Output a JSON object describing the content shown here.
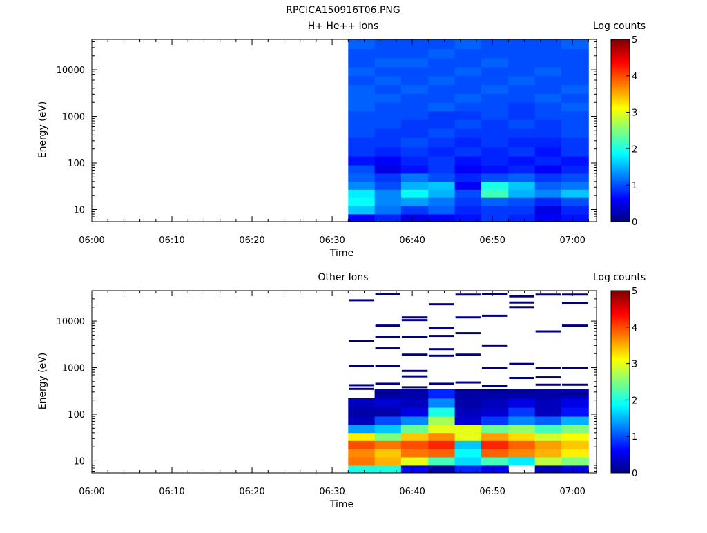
{
  "page_title": "RPCICA150916T06.PNG",
  "chart_data": [
    {
      "type": "heatmap",
      "title": "H+ He++ Ions",
      "xlabel": "Time",
      "ylabel": "Energy (eV)",
      "colorbar_label": "Log counts",
      "x_ticks": [
        "06:00",
        "06:10",
        "06:20",
        "06:30",
        "06:40",
        "06:50",
        "07:00"
      ],
      "x_range_minutes": [
        0,
        63
      ],
      "y_ticks": [
        "10",
        "100",
        "1000",
        "10000"
      ],
      "y_scale": "log",
      "y_range_eV": [
        5.5,
        45000
      ],
      "colorbar_ticks": [
        "0",
        "1",
        "2",
        "3",
        "4",
        "5"
      ],
      "colorbar_range": [
        0,
        5
      ],
      "colormap": [
        "#00007f",
        "#0000ff",
        "#007fff",
        "#00ffff",
        "#7fff7f",
        "#ffff00",
        "#ff7f00",
        "#ff0000",
        "#7f0000"
      ],
      "time_columns_minutes": [
        32.0,
        35.3,
        38.6,
        42.0,
        45.3,
        48.6,
        52.0,
        55.3,
        58.6,
        62.0
      ],
      "rows": [
        {
          "energy_range_eV": [
            5.5,
            8
          ],
          "values": [
            0.6,
            0.8,
            0.5,
            0.6,
            0.7,
            0.9,
            0.8,
            0.6,
            0.7
          ]
        },
        {
          "energy_range_eV": [
            8,
            12
          ],
          "values": [
            1.6,
            1.2,
            0.9,
            1.1,
            0.8,
            0.9,
            0.9,
            0.5,
            0.8
          ]
        },
        {
          "energy_range_eV": [
            12,
            18
          ],
          "values": [
            1.9,
            1.3,
            1.4,
            1.2,
            0.9,
            1.1,
            1.0,
            0.8,
            1.0
          ]
        },
        {
          "energy_range_eV": [
            18,
            27
          ],
          "values": [
            1.8,
            1.3,
            1.9,
            1.5,
            1.0,
            2.2,
            1.5,
            1.3,
            1.6
          ]
        },
        {
          "energy_range_eV": [
            27,
            40
          ],
          "values": [
            1.3,
            1.0,
            1.5,
            1.6,
            0.6,
            2.0,
            1.6,
            1.1,
            1.2
          ]
        },
        {
          "energy_range_eV": [
            40,
            60
          ],
          "values": [
            1.1,
            0.9,
            1.2,
            1.0,
            0.8,
            1.0,
            1.1,
            0.9,
            1.0
          ]
        },
        {
          "energy_range_eV": [
            60,
            90
          ],
          "values": [
            1.0,
            0.5,
            0.7,
            0.9,
            0.6,
            0.7,
            0.8,
            0.6,
            0.8
          ]
        },
        {
          "energy_range_eV": [
            90,
            140
          ],
          "values": [
            0.7,
            0.6,
            0.8,
            0.9,
            0.7,
            0.8,
            0.7,
            0.8,
            0.7
          ]
        },
        {
          "energy_range_eV": [
            140,
            220
          ],
          "values": [
            0.9,
            0.8,
            0.9,
            0.8,
            0.9,
            0.8,
            0.9,
            0.7,
            0.9
          ]
        },
        {
          "energy_range_eV": [
            220,
            350
          ],
          "values": [
            0.9,
            0.9,
            1.0,
            0.9,
            0.8,
            0.9,
            0.8,
            0.8,
            0.9
          ]
        },
        {
          "energy_range_eV": [
            350,
            550
          ],
          "values": [
            1.0,
            0.9,
            0.9,
            1.0,
            0.9,
            0.9,
            0.9,
            0.9,
            1.0
          ]
        },
        {
          "energy_range_eV": [
            550,
            850
          ],
          "values": [
            1.0,
            1.0,
            0.9,
            0.9,
            1.0,
            0.9,
            1.0,
            0.9,
            1.0
          ]
        },
        {
          "energy_range_eV": [
            850,
            1300
          ],
          "values": [
            1.0,
            1.0,
            1.0,
            0.9,
            0.9,
            1.0,
            0.9,
            1.0,
            1.0
          ]
        },
        {
          "energy_range_eV": [
            1300,
            2000
          ],
          "values": [
            1.1,
            1.0,
            1.0,
            1.1,
            1.0,
            1.0,
            0.9,
            1.0,
            1.1
          ]
        },
        {
          "energy_range_eV": [
            2000,
            3100
          ],
          "values": [
            1.1,
            1.1,
            1.0,
            1.0,
            1.1,
            1.0,
            1.0,
            1.1,
            1.0
          ]
        },
        {
          "energy_range_eV": [
            3100,
            4800
          ],
          "values": [
            1.1,
            1.0,
            1.1,
            1.0,
            1.0,
            1.1,
            1.0,
            1.0,
            1.1
          ]
        },
        {
          "energy_range_eV": [
            4800,
            7400
          ],
          "values": [
            1.0,
            1.1,
            1.0,
            1.1,
            1.0,
            1.0,
            1.1,
            1.0,
            1.0
          ]
        },
        {
          "energy_range_eV": [
            7400,
            11500
          ],
          "values": [
            1.1,
            1.0,
            1.0,
            1.0,
            1.1,
            1.0,
            1.0,
            1.1,
            1.0
          ]
        },
        {
          "energy_range_eV": [
            11500,
            18000
          ],
          "values": [
            1.0,
            1.1,
            1.1,
            1.0,
            1.0,
            1.1,
            1.0,
            1.0,
            1.0
          ]
        },
        {
          "energy_range_eV": [
            18000,
            28000
          ],
          "values": [
            1.0,
            1.0,
            1.0,
            1.1,
            1.0,
            1.0,
            1.0,
            1.0,
            1.0
          ]
        },
        {
          "energy_range_eV": [
            28000,
            45000
          ],
          "values": [
            1.1,
            1.0,
            1.0,
            1.0,
            1.1,
            1.0,
            1.0,
            1.0,
            1.1
          ]
        }
      ]
    },
    {
      "type": "heatmap",
      "title": "Other Ions",
      "xlabel": "Time",
      "ylabel": "Energy (eV)",
      "colorbar_label": "Log counts",
      "x_ticks": [
        "06:00",
        "06:10",
        "06:20",
        "06:30",
        "06:40",
        "06:50",
        "07:00"
      ],
      "x_range_minutes": [
        0,
        63
      ],
      "y_ticks": [
        "10",
        "100",
        "1000",
        "10000"
      ],
      "y_scale": "log",
      "y_range_eV": [
        5.5,
        45000
      ],
      "colorbar_ticks": [
        "0",
        "1",
        "2",
        "3",
        "4",
        "5"
      ],
      "colorbar_range": [
        0,
        5
      ],
      "colormap": [
        "#00007f",
        "#0000ff",
        "#007fff",
        "#00ffff",
        "#7fff7f",
        "#ffff00",
        "#ff7f00",
        "#ff0000",
        "#7f0000"
      ],
      "time_columns_minutes": [
        32.0,
        35.3,
        38.6,
        42.0,
        45.3,
        48.6,
        52.0,
        55.3,
        58.6,
        62.0
      ],
      "rows": [
        {
          "energy_range_eV": [
            5.5,
            8
          ],
          "values": [
            2.0,
            2.0,
            0.6,
            0.2,
            0.8,
            0.6,
            null,
            0.3,
            0.5
          ]
        },
        {
          "energy_range_eV": [
            8,
            12
          ],
          "values": [
            3.8,
            3.5,
            3.0,
            2.2,
            1.7,
            2.2,
            1.8,
            2.8,
            2.5
          ]
        },
        {
          "energy_range_eV": [
            12,
            18
          ],
          "values": [
            3.7,
            3.4,
            3.8,
            3.9,
            1.9,
            3.9,
            3.7,
            3.5,
            3.2
          ]
        },
        {
          "energy_range_eV": [
            18,
            27
          ],
          "values": [
            4.0,
            3.8,
            4.0,
            4.2,
            1.6,
            4.2,
            3.9,
            3.6,
            3.4
          ]
        },
        {
          "energy_range_eV": [
            27,
            40
          ],
          "values": [
            3.2,
            2.5,
            3.4,
            3.7,
            3.0,
            3.6,
            3.3,
            2.9,
            3.1
          ]
        },
        {
          "energy_range_eV": [
            40,
            60
          ],
          "values": [
            1.4,
            1.6,
            2.4,
            3.0,
            3.0,
            2.4,
            2.6,
            2.2,
            2.5
          ]
        },
        {
          "energy_range_eV": [
            60,
            90
          ],
          "values": [
            0.3,
            1.0,
            1.3,
            2.7,
            0.4,
            0.9,
            1.3,
            1.1,
            1.5
          ]
        },
        {
          "energy_range_eV": [
            90,
            140
          ],
          "values": [
            0.2,
            0.2,
            0.5,
            2.0,
            0.3,
            0.4,
            0.9,
            0.3,
            0.7
          ]
        },
        {
          "energy_range_eV": [
            140,
            220
          ],
          "values": [
            0.3,
            0.4,
            0.3,
            1.3,
            0.2,
            0.3,
            0.5,
            0.3,
            0.5
          ]
        },
        {
          "energy_range_eV": [
            220,
            350
          ],
          "values": [
            null,
            0.2,
            0.2,
            0.8,
            0.2,
            0.2,
            0.2,
            0.2,
            0.3
          ]
        }
      ],
      "sparse_lines_eV_by_column": [
        [
          28000,
          3700,
          1100,
          420,
          350
        ],
        [
          38000,
          8000,
          4600,
          2600,
          1100,
          450,
          290
        ],
        [
          12000,
          10500,
          4600,
          1900,
          850,
          650,
          380
        ],
        [
          23000,
          7000,
          4800,
          2500,
          1800,
          450
        ],
        [
          37000,
          12000,
          5500,
          1900,
          480,
          330
        ],
        [
          38000,
          13000,
          3000,
          1000,
          400,
          330
        ],
        [
          34000,
          25000,
          20000,
          1200,
          600,
          310
        ],
        [
          37000,
          6000,
          1000,
          620,
          430
        ],
        [
          37000,
          24000,
          8000,
          1000,
          430,
          280
        ]
      ]
    }
  ]
}
